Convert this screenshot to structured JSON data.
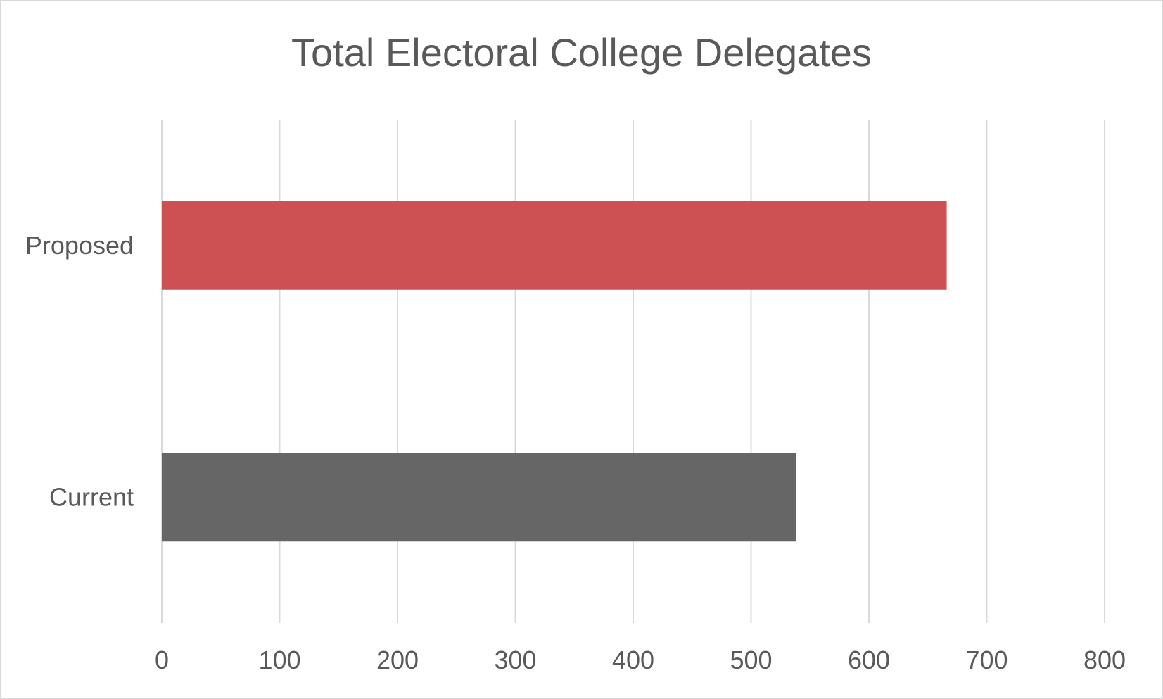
{
  "chart_data": {
    "type": "bar",
    "orientation": "horizontal",
    "title": "Total Electoral College Delegates",
    "xlabel": "",
    "ylabel": "",
    "categories": [
      "Proposed",
      "Current"
    ],
    "values": [
      666,
      538
    ],
    "colors": [
      "#cd5052",
      "#666666"
    ],
    "xlim": [
      0,
      800
    ],
    "xticks": [
      0,
      100,
      200,
      300,
      400,
      500,
      600,
      700,
      800
    ],
    "grid": true,
    "legend": "none"
  }
}
